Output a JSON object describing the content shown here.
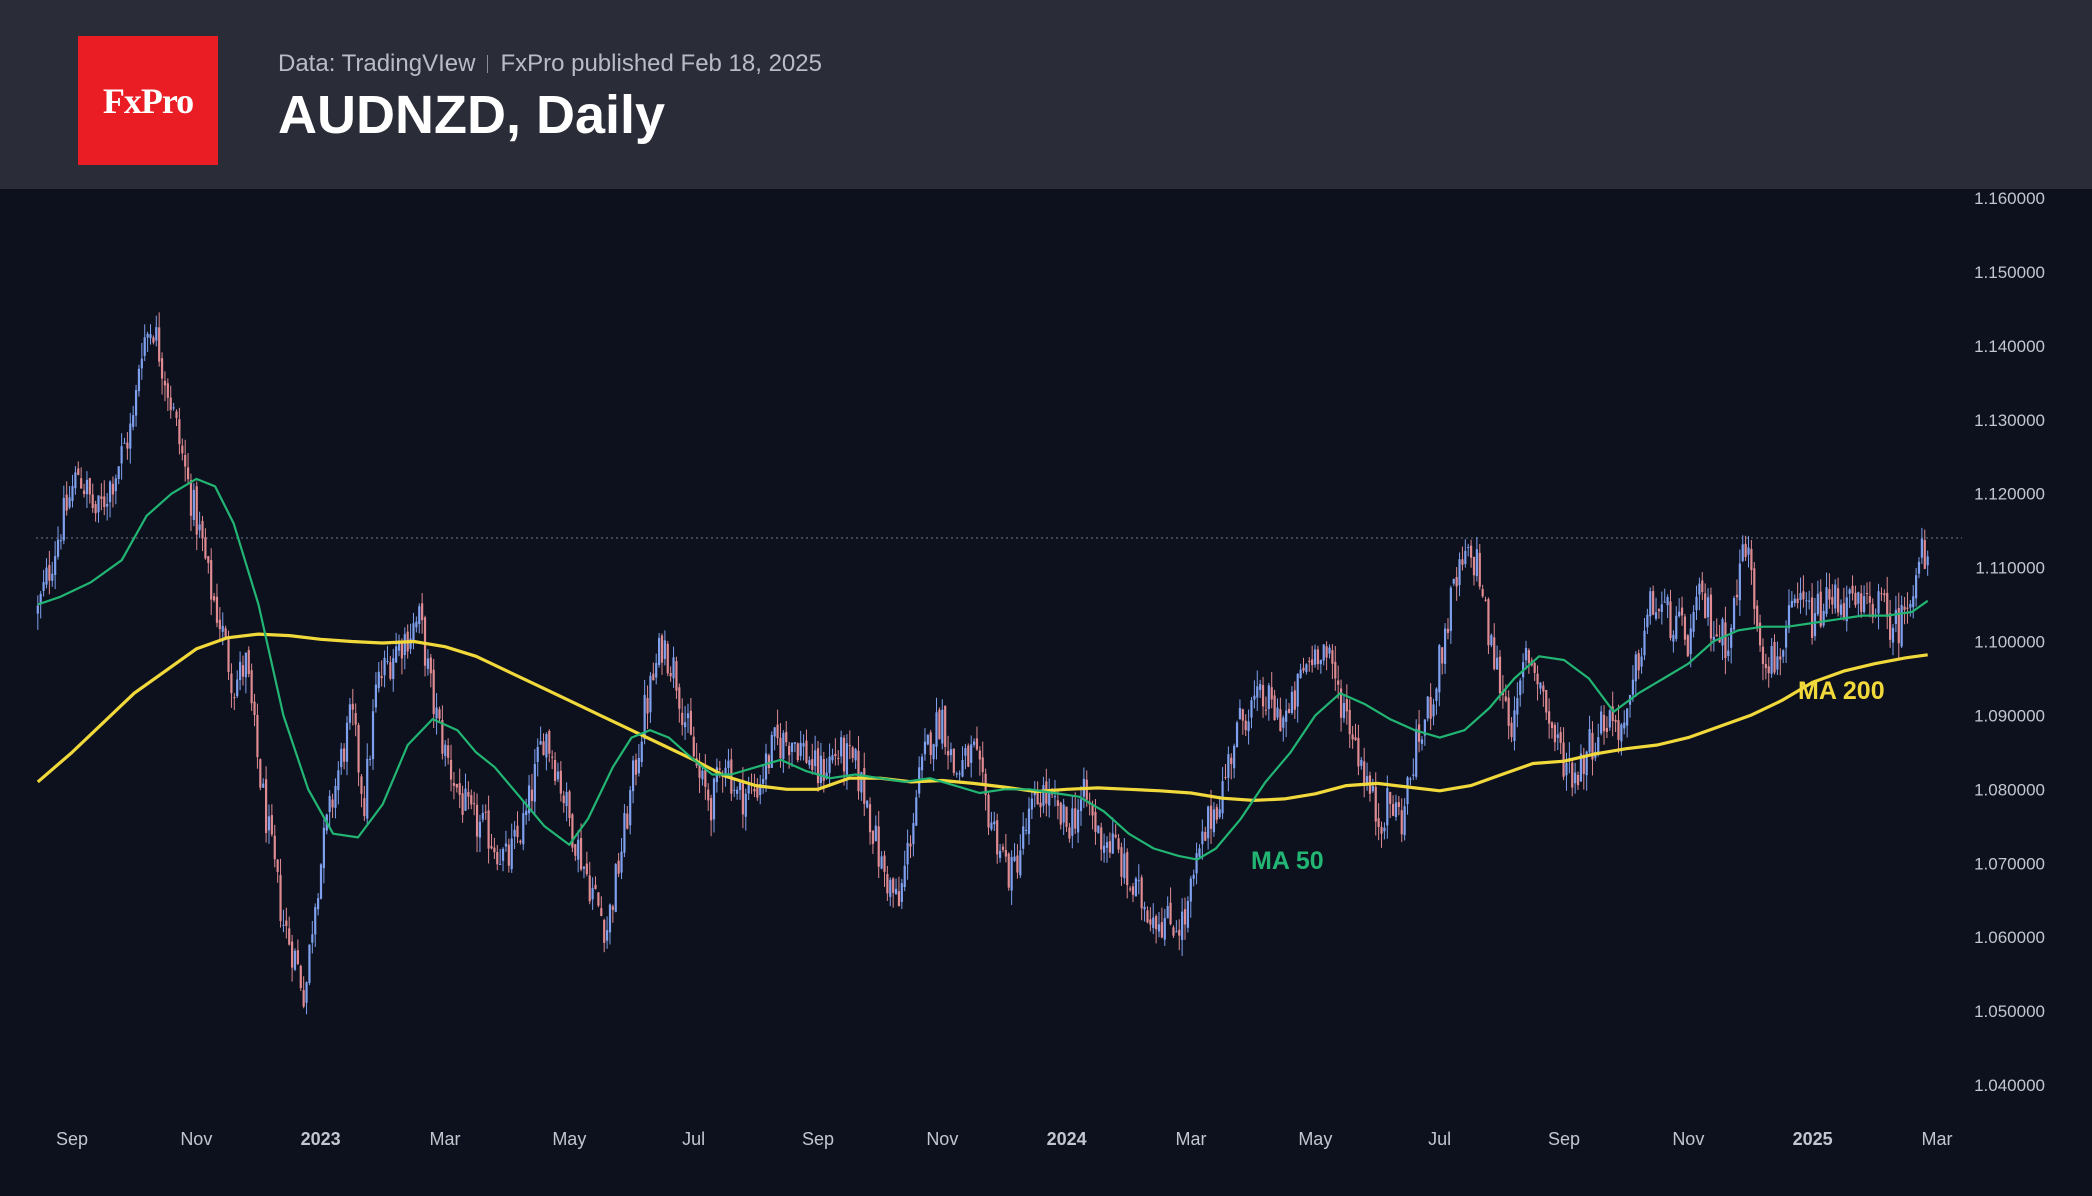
{
  "header": {
    "logo_text": "FxPro",
    "source": "Data: TradingVIew",
    "published": "FxPro published Feb 18, 2025",
    "title": "AUDNZD, Daily"
  },
  "colors": {
    "background": "#0c111d",
    "header_bg": "#2a2d37",
    "logo_bg": "#ea1d24",
    "up_candle": "#7fa0ee",
    "down_candle": "#e08b92",
    "ma50": "#22b573",
    "ma200": "#f2d93b",
    "ref_line": "#6e7a8f"
  },
  "chart_data": {
    "type": "candlestick",
    "title": "AUDNZD, Daily",
    "symbol": "AUDNZD",
    "timeframe": "Daily",
    "ylim": [
      1.036,
      1.162
    ],
    "y_ticks": [
      "1.160000",
      "1.150000",
      "1.140000",
      "1.130000",
      "1.120000",
      "1.110000",
      "1.100000",
      "1.090000",
      "1.080000",
      "1.070000",
      "1.060000",
      "1.050000",
      "1.040000"
    ],
    "y_tick_values": [
      1.16,
      1.15,
      1.14,
      1.13,
      1.12,
      1.11,
      1.1,
      1.09,
      1.08,
      1.07,
      1.06,
      1.05,
      1.04
    ],
    "x_ticks": [
      "Sep",
      "Nov",
      "2023",
      "Mar",
      "May",
      "Jul",
      "Sep",
      "Nov",
      "2024",
      "Mar",
      "May",
      "Jul",
      "Sep",
      "Nov",
      "2025",
      "Mar"
    ],
    "x_tick_months": [
      0,
      2,
      4,
      6,
      8,
      10,
      12,
      14,
      16,
      18,
      20,
      22,
      24,
      26,
      28,
      30
    ],
    "x_range_months": [
      -0.6,
      30.8
    ],
    "last_price_line": 1.114,
    "close_path": [
      [
        -0.55,
        1.104
      ],
      [
        -0.2,
        1.115
      ],
      [
        0.1,
        1.123
      ],
      [
        0.4,
        1.117
      ],
      [
        0.7,
        1.123
      ],
      [
        1.0,
        1.13
      ],
      [
        1.1,
        1.14
      ],
      [
        1.3,
        1.143
      ],
      [
        1.5,
        1.136
      ],
      [
        1.7,
        1.128
      ],
      [
        1.9,
        1.12
      ],
      [
        2.1,
        1.113
      ],
      [
        2.2,
        1.108
      ],
      [
        2.4,
        1.102
      ],
      [
        2.6,
        1.094
      ],
      [
        2.8,
        1.097
      ],
      [
        3.0,
        1.083
      ],
      [
        3.2,
        1.072
      ],
      [
        3.4,
        1.062
      ],
      [
        3.6,
        1.057
      ],
      [
        3.75,
        1.052
      ],
      [
        3.9,
        1.065
      ],
      [
        4.1,
        1.075
      ],
      [
        4.3,
        1.083
      ],
      [
        4.5,
        1.09
      ],
      [
        4.7,
        1.078
      ],
      [
        4.9,
        1.094
      ],
      [
        5.2,
        1.099
      ],
      [
        5.6,
        1.103
      ],
      [
        5.8,
        1.092
      ],
      [
        6.0,
        1.085
      ],
      [
        6.2,
        1.08
      ],
      [
        6.4,
        1.076
      ],
      [
        6.7,
        1.074
      ],
      [
        7.0,
        1.07
      ],
      [
        7.3,
        1.076
      ],
      [
        7.6,
        1.088
      ],
      [
        7.8,
        1.083
      ],
      [
        8.0,
        1.076
      ],
      [
        8.3,
        1.068
      ],
      [
        8.6,
        1.061
      ],
      [
        8.8,
        1.07
      ],
      [
        9.0,
        1.08
      ],
      [
        9.2,
        1.09
      ],
      [
        9.5,
        1.1
      ],
      [
        9.7,
        1.096
      ],
      [
        9.9,
        1.088
      ],
      [
        10.1,
        1.081
      ],
      [
        10.3,
        1.078
      ],
      [
        10.5,
        1.085
      ],
      [
        10.7,
        1.079
      ],
      [
        11.0,
        1.08
      ],
      [
        11.3,
        1.086
      ],
      [
        11.6,
        1.087
      ],
      [
        11.8,
        1.085
      ],
      [
        12.0,
        1.082
      ],
      [
        12.3,
        1.085
      ],
      [
        12.6,
        1.083
      ],
      [
        12.8,
        1.078
      ],
      [
        13.0,
        1.07
      ],
      [
        13.3,
        1.064
      ],
      [
        13.6,
        1.08
      ],
      [
        13.8,
        1.087
      ],
      [
        14.0,
        1.09
      ],
      [
        14.2,
        1.082
      ],
      [
        14.5,
        1.085
      ],
      [
        14.7,
        1.078
      ],
      [
        14.9,
        1.073
      ],
      [
        15.1,
        1.068
      ],
      [
        15.4,
        1.076
      ],
      [
        15.6,
        1.08
      ],
      [
        15.8,
        1.077
      ],
      [
        16.0,
        1.075
      ],
      [
        16.3,
        1.079
      ],
      [
        16.5,
        1.074
      ],
      [
        16.8,
        1.072
      ],
      [
        17.0,
        1.067
      ],
      [
        17.3,
        1.064
      ],
      [
        17.6,
        1.062
      ],
      [
        17.9,
        1.062
      ],
      [
        18.1,
        1.07
      ],
      [
        18.3,
        1.076
      ],
      [
        18.5,
        1.08
      ],
      [
        18.7,
        1.087
      ],
      [
        18.9,
        1.091
      ],
      [
        19.2,
        1.092
      ],
      [
        19.4,
        1.09
      ],
      [
        19.6,
        1.09
      ],
      [
        19.8,
        1.096
      ],
      [
        20.1,
        1.1
      ],
      [
        20.3,
        1.095
      ],
      [
        20.6,
        1.088
      ],
      [
        20.8,
        1.082
      ],
      [
        21.0,
        1.076
      ],
      [
        21.2,
        1.078
      ],
      [
        21.4,
        1.076
      ],
      [
        21.6,
        1.085
      ],
      [
        21.8,
        1.09
      ],
      [
        22.0,
        1.097
      ],
      [
        22.2,
        1.106
      ],
      [
        22.4,
        1.111
      ],
      [
        22.6,
        1.111
      ],
      [
        22.8,
        1.1
      ],
      [
        23.0,
        1.094
      ],
      [
        23.2,
        1.088
      ],
      [
        23.4,
        1.099
      ],
      [
        23.6,
        1.095
      ],
      [
        23.8,
        1.088
      ],
      [
        24.0,
        1.084
      ],
      [
        24.2,
        1.082
      ],
      [
        24.4,
        1.086
      ],
      [
        24.7,
        1.09
      ],
      [
        25.0,
        1.088
      ],
      [
        25.2,
        1.098
      ],
      [
        25.4,
        1.105
      ],
      [
        25.6,
        1.104
      ],
      [
        25.8,
        1.102
      ],
      [
        26.0,
        1.1
      ],
      [
        26.2,
        1.106
      ],
      [
        26.4,
        1.102
      ],
      [
        26.6,
        1.1
      ],
      [
        26.8,
        1.107
      ],
      [
        26.9,
        1.115
      ],
      [
        27.0,
        1.109
      ],
      [
        27.2,
        1.099
      ],
      [
        27.4,
        1.097
      ],
      [
        27.6,
        1.102
      ],
      [
        27.8,
        1.105
      ],
      [
        28.0,
        1.103
      ],
      [
        28.2,
        1.105
      ],
      [
        28.4,
        1.106
      ],
      [
        28.6,
        1.105
      ],
      [
        28.8,
        1.104
      ],
      [
        29.0,
        1.106
      ],
      [
        29.2,
        1.103
      ],
      [
        29.4,
        1.102
      ],
      [
        29.6,
        1.108
      ],
      [
        29.75,
        1.112
      ],
      [
        29.85,
        1.109
      ]
    ],
    "series": [
      {
        "name": "MA 50",
        "label": "MA 50",
        "x": [
          -0.55,
          -0.2,
          0.3,
          0.8,
          1.2,
          1.6,
          2.0,
          2.3,
          2.6,
          3.0,
          3.4,
          3.8,
          4.2,
          4.6,
          5.0,
          5.4,
          5.8,
          6.2,
          6.5,
          6.8,
          7.2,
          7.6,
          8.0,
          8.3,
          8.7,
          9.0,
          9.3,
          9.6,
          10.0,
          10.3,
          10.6,
          11.0,
          11.4,
          11.8,
          12.2,
          12.6,
          13.0,
          13.4,
          13.8,
          14.2,
          14.6,
          15.0,
          15.4,
          15.8,
          16.2,
          16.6,
          17.0,
          17.4,
          17.8,
          18.1,
          18.4,
          18.8,
          19.2,
          19.6,
          20.0,
          20.4,
          20.8,
          21.2,
          21.6,
          22.0,
          22.4,
          22.8,
          23.2,
          23.6,
          24.0,
          24.4,
          24.8,
          25.2,
          25.6,
          26.0,
          26.4,
          26.8,
          27.2,
          27.6,
          28.0,
          28.4,
          28.8,
          29.2,
          29.6,
          29.85
        ],
        "values": [
          1.105,
          1.106,
          1.108,
          1.111,
          1.117,
          1.12,
          1.122,
          1.121,
          1.116,
          1.105,
          1.09,
          1.08,
          1.074,
          1.0735,
          1.078,
          1.086,
          1.0895,
          1.088,
          1.085,
          1.083,
          1.079,
          1.075,
          1.0725,
          1.076,
          1.083,
          1.087,
          1.088,
          1.087,
          1.084,
          1.082,
          1.082,
          1.083,
          1.084,
          1.0825,
          1.0815,
          1.082,
          1.0815,
          1.081,
          1.0815,
          1.0805,
          1.0795,
          1.08,
          1.08,
          1.0795,
          1.079,
          1.077,
          1.074,
          1.072,
          1.071,
          1.0705,
          1.072,
          1.076,
          1.081,
          1.085,
          1.09,
          1.093,
          1.0915,
          1.0895,
          1.088,
          1.087,
          1.088,
          1.091,
          1.095,
          1.098,
          1.0975,
          1.095,
          1.0905,
          1.093,
          1.095,
          1.097,
          1.1,
          1.1015,
          1.102,
          1.102,
          1.1025,
          1.103,
          1.1035,
          1.1035,
          1.104,
          1.1055
        ],
        "color": "#22b573"
      },
      {
        "name": "MA 200",
        "label": "MA 200",
        "x": [
          -0.55,
          0.0,
          0.5,
          1.0,
          1.5,
          2.0,
          2.5,
          3.0,
          3.5,
          4.0,
          4.5,
          5.0,
          5.5,
          6.0,
          6.5,
          7.0,
          7.5,
          8.0,
          8.5,
          9.0,
          9.5,
          10.0,
          10.5,
          11.0,
          11.5,
          12.0,
          12.5,
          13.0,
          13.5,
          14.0,
          14.5,
          15.0,
          15.5,
          16.0,
          16.5,
          17.0,
          17.5,
          18.0,
          18.5,
          19.0,
          19.5,
          20.0,
          20.5,
          21.0,
          21.5,
          22.0,
          22.5,
          23.0,
          23.5,
          24.0,
          24.5,
          25.0,
          25.5,
          26.0,
          26.5,
          27.0,
          27.5,
          28.0,
          28.5,
          29.0,
          29.5,
          29.85
        ],
        "values": [
          1.081,
          1.085,
          1.089,
          1.093,
          1.096,
          1.099,
          1.1005,
          1.101,
          1.1008,
          1.1003,
          1.1,
          1.0998,
          1.1,
          1.0993,
          1.098,
          1.096,
          1.094,
          1.092,
          1.09,
          1.088,
          1.086,
          1.084,
          1.0818,
          1.0805,
          1.08,
          1.08,
          1.0815,
          1.0815,
          1.081,
          1.0812,
          1.0808,
          1.0803,
          1.0797,
          1.08,
          1.0802,
          1.08,
          1.0798,
          1.0795,
          1.0788,
          1.0785,
          1.0787,
          1.0794,
          1.0805,
          1.0808,
          1.0803,
          1.0798,
          1.0805,
          1.082,
          1.0835,
          1.0838,
          1.0848,
          1.0855,
          1.086,
          1.087,
          1.0885,
          1.09,
          1.092,
          1.0945,
          1.096,
          1.097,
          1.0978,
          1.0982
        ],
        "color": "#f2d93b"
      }
    ],
    "annotations": [
      "MA 50",
      "MA 200"
    ]
  }
}
